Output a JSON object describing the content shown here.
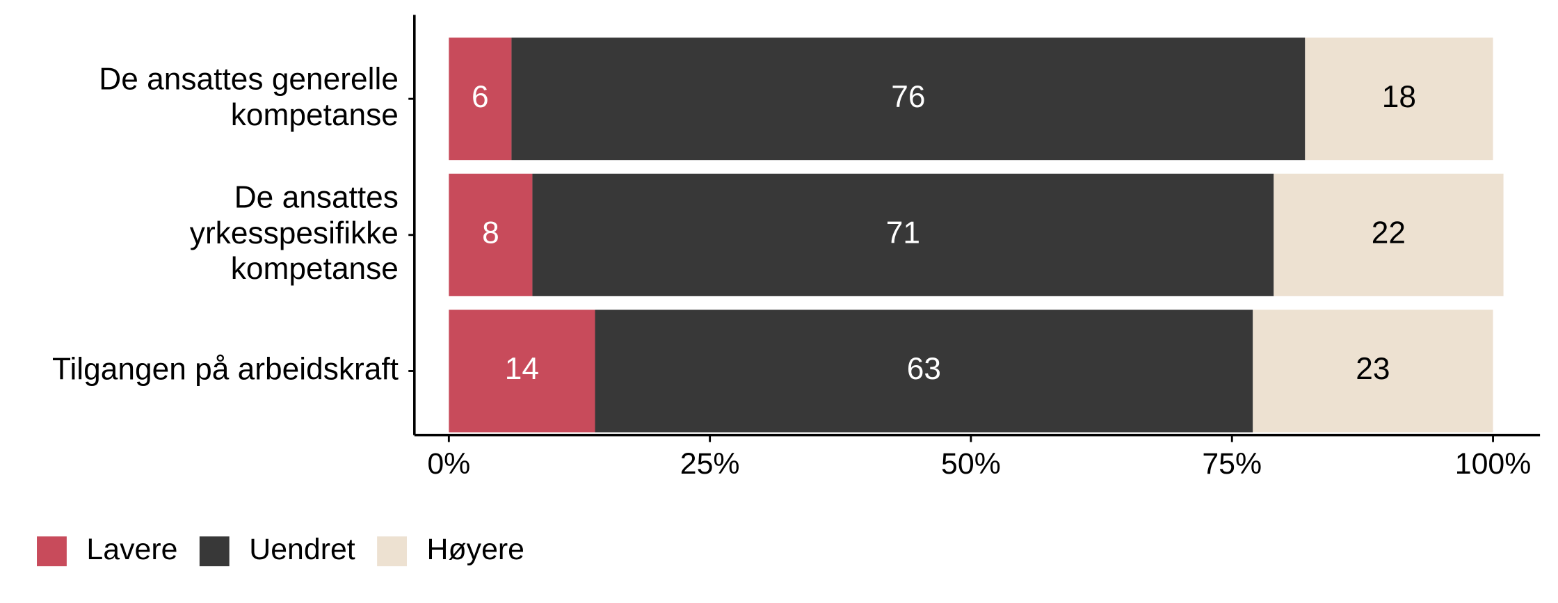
{
  "chart_data": {
    "type": "stacked-bar-horizontal",
    "categories": [
      "De ansattes generelle\nkompetanse",
      "De ansattes\nyrkesspesifikke\nkompetanse",
      "Tilgangen på arbeidskraft"
    ],
    "series": [
      {
        "name": "Lavere",
        "color": "#c84b5b",
        "label_color": "#ffffff",
        "values": [
          6,
          8,
          14
        ]
      },
      {
        "name": "Uendret",
        "color": "#383838",
        "label_color": "#ffffff",
        "values": [
          76,
          71,
          63
        ]
      },
      {
        "name": "Høyere",
        "color": "#ede1d1",
        "label_color": "#000000",
        "values": [
          18,
          22,
          23
        ]
      }
    ],
    "xlim": [
      -3.3,
      104.5
    ],
    "xticks": [
      {
        "value": 0,
        "label": "0%"
      },
      {
        "value": 25,
        "label": "25%"
      },
      {
        "value": 50,
        "label": "50%"
      },
      {
        "value": 75,
        "label": "75%"
      },
      {
        "value": 100,
        "label": "100%"
      }
    ],
    "legend": "bottom-left"
  }
}
